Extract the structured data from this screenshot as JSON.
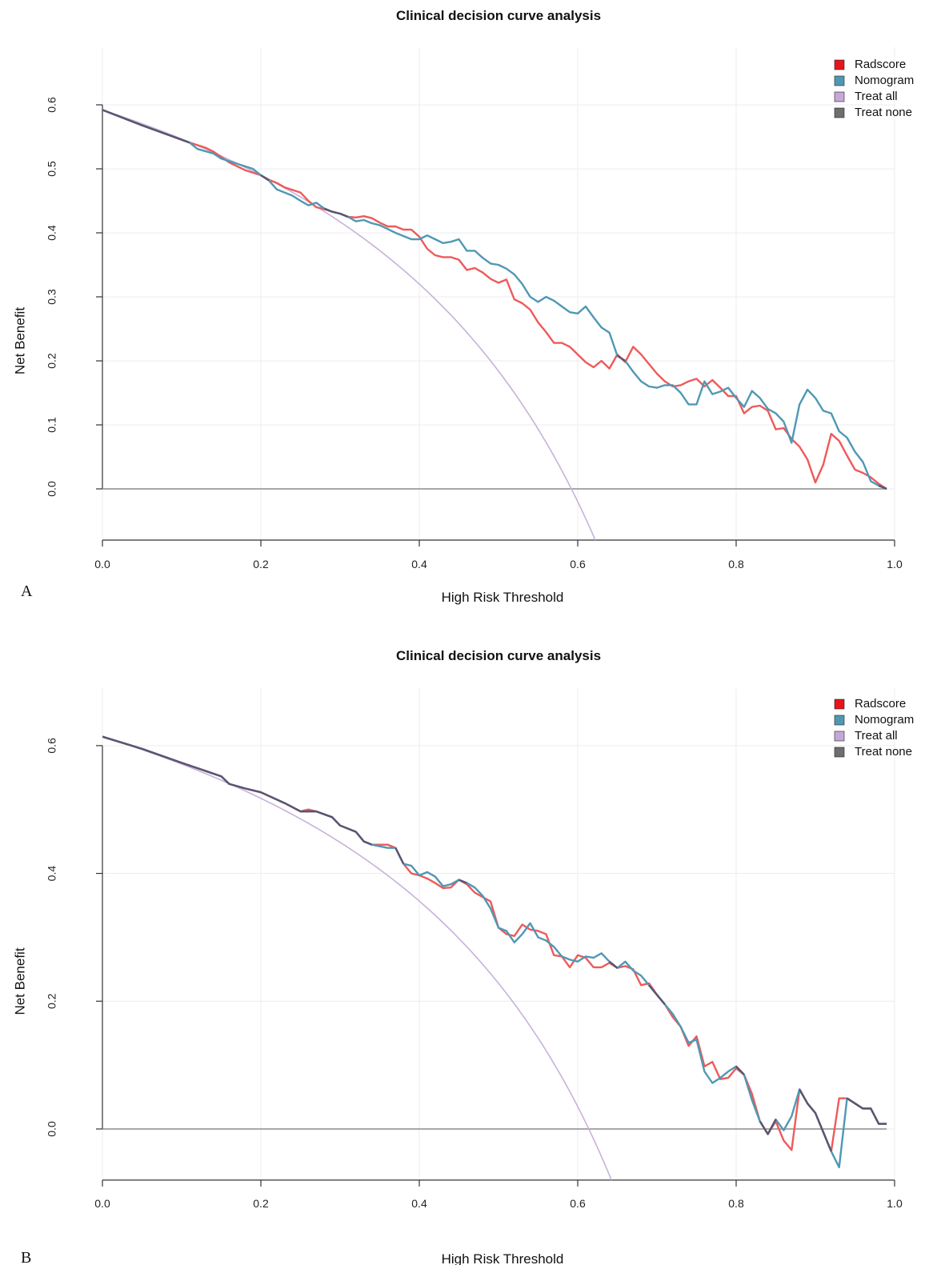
{
  "chart_data": [
    {
      "type": "line",
      "panel_label": "A",
      "title": "Clinical decision curve analysis",
      "xlabel": "High Risk Threshold",
      "ylabel": "Net Benefit",
      "xlim": [
        0,
        1
      ],
      "ylim": [
        -0.08,
        0.69
      ],
      "xticks": [
        "0.0",
        "0.2",
        "0.4",
        "0.6",
        "0.8",
        "1.0"
      ],
      "yticks": [
        "0.0",
        "0.1",
        "0.2",
        "0.3",
        "0.4",
        "0.5",
        "0.6"
      ],
      "grid": true,
      "legend_position": "top-right",
      "series": [
        {
          "name": "Radscore",
          "color": "#ee5a5a",
          "swatch": "#e8141b",
          "x": [
            0.0,
            0.05,
            0.11,
            0.13,
            0.14,
            0.16,
            0.18,
            0.2,
            0.21,
            0.22,
            0.23,
            0.25,
            0.26,
            0.27,
            0.28,
            0.29,
            0.3,
            0.31,
            0.32,
            0.33,
            0.34,
            0.35,
            0.36,
            0.37,
            0.38,
            0.39,
            0.4,
            0.41,
            0.42,
            0.43,
            0.44,
            0.45,
            0.46,
            0.47,
            0.48,
            0.49,
            0.5,
            0.51,
            0.52,
            0.53,
            0.54,
            0.55,
            0.56,
            0.57,
            0.58,
            0.59,
            0.6,
            0.61,
            0.62,
            0.63,
            0.64,
            0.65,
            0.66,
            0.67,
            0.68,
            0.69,
            0.7,
            0.71,
            0.72,
            0.73,
            0.74,
            0.75,
            0.76,
            0.77,
            0.78,
            0.79,
            0.8,
            0.81,
            0.82,
            0.83,
            0.84,
            0.85,
            0.86,
            0.87,
            0.88,
            0.89,
            0.9,
            0.91,
            0.92,
            0.93,
            0.94,
            0.95,
            0.96,
            0.97,
            0.98,
            0.99
          ],
          "y": [
            0.592,
            0.568,
            0.541,
            0.533,
            0.527,
            0.51,
            0.498,
            0.49,
            0.483,
            0.478,
            0.471,
            0.463,
            0.45,
            0.44,
            0.437,
            0.433,
            0.43,
            0.425,
            0.424,
            0.426,
            0.423,
            0.416,
            0.41,
            0.41,
            0.405,
            0.405,
            0.394,
            0.375,
            0.365,
            0.362,
            0.362,
            0.358,
            0.342,
            0.345,
            0.338,
            0.328,
            0.322,
            0.327,
            0.296,
            0.29,
            0.28,
            0.26,
            0.245,
            0.228,
            0.228,
            0.222,
            0.21,
            0.198,
            0.19,
            0.2,
            0.188,
            0.21,
            0.198,
            0.222,
            0.21,
            0.195,
            0.18,
            0.168,
            0.16,
            0.162,
            0.168,
            0.172,
            0.16,
            0.17,
            0.158,
            0.145,
            0.145,
            0.118,
            0.128,
            0.13,
            0.122,
            0.093,
            0.095,
            0.078,
            0.066,
            0.046,
            0.01,
            0.038,
            0.086,
            0.075,
            0.052,
            0.03,
            0.025,
            0.018,
            0.008,
            0.0
          ]
        },
        {
          "name": "Nomogram",
          "color": "#4f98b4",
          "swatch": "#4f98b4",
          "x": [
            0.0,
            0.05,
            0.11,
            0.12,
            0.14,
            0.15,
            0.17,
            0.19,
            0.2,
            0.21,
            0.22,
            0.24,
            0.25,
            0.26,
            0.27,
            0.28,
            0.29,
            0.3,
            0.31,
            0.32,
            0.33,
            0.34,
            0.35,
            0.36,
            0.37,
            0.38,
            0.39,
            0.4,
            0.41,
            0.42,
            0.43,
            0.44,
            0.45,
            0.46,
            0.47,
            0.48,
            0.49,
            0.5,
            0.51,
            0.52,
            0.53,
            0.54,
            0.55,
            0.56,
            0.57,
            0.58,
            0.59,
            0.6,
            0.61,
            0.62,
            0.63,
            0.64,
            0.65,
            0.66,
            0.67,
            0.68,
            0.69,
            0.7,
            0.71,
            0.72,
            0.73,
            0.74,
            0.75,
            0.76,
            0.77,
            0.78,
            0.79,
            0.8,
            0.81,
            0.82,
            0.83,
            0.84,
            0.85,
            0.86,
            0.87,
            0.88,
            0.89,
            0.9,
            0.91,
            0.92,
            0.93,
            0.94,
            0.95,
            0.96,
            0.97,
            0.98,
            0.99
          ],
          "y": [
            0.592,
            0.568,
            0.541,
            0.531,
            0.524,
            0.516,
            0.508,
            0.5,
            0.49,
            0.482,
            0.468,
            0.458,
            0.45,
            0.443,
            0.447,
            0.438,
            0.433,
            0.43,
            0.425,
            0.418,
            0.42,
            0.415,
            0.412,
            0.406,
            0.4,
            0.395,
            0.39,
            0.39,
            0.396,
            0.39,
            0.384,
            0.386,
            0.39,
            0.372,
            0.372,
            0.361,
            0.352,
            0.35,
            0.344,
            0.335,
            0.32,
            0.3,
            0.292,
            0.3,
            0.294,
            0.285,
            0.276,
            0.274,
            0.285,
            0.268,
            0.252,
            0.244,
            0.208,
            0.2,
            0.183,
            0.168,
            0.16,
            0.158,
            0.162,
            0.162,
            0.15,
            0.132,
            0.132,
            0.168,
            0.148,
            0.152,
            0.158,
            0.142,
            0.128,
            0.153,
            0.142,
            0.125,
            0.118,
            0.105,
            0.072,
            0.132,
            0.155,
            0.142,
            0.122,
            0.118,
            0.09,
            0.08,
            0.058,
            0.042,
            0.012,
            0.005,
            0.0
          ]
        },
        {
          "name": "Treat all",
          "color": "#c8b2d8",
          "swatch": "#c5a8d8",
          "curve": "treat_all",
          "prevalence": 0.592,
          "x_end": 0.625
        },
        {
          "name": "Treat none",
          "color": "#8c8c8c",
          "swatch": "#6e6e6e",
          "x": [
            0,
            0.99
          ],
          "y": [
            0,
            0
          ]
        }
      ]
    },
    {
      "type": "line",
      "panel_label": "B",
      "title": "Clinical decision curve analysis",
      "xlabel": "High Risk Threshold",
      "ylabel": "Net Benefit",
      "xlim": [
        0,
        1
      ],
      "ylim": [
        -0.08,
        0.69
      ],
      "xticks": [
        "0.0",
        "0.2",
        "0.4",
        "0.6",
        "0.8",
        "1.0"
      ],
      "yticks": [
        "0.0",
        "0.2",
        "0.4",
        "0.6"
      ],
      "grid": true,
      "legend_position": "top-right",
      "series": [
        {
          "name": "Radscore",
          "color": "#ee5a5a",
          "swatch": "#e8141b",
          "x": [
            0.0,
            0.05,
            0.1,
            0.15,
            0.16,
            0.18,
            0.2,
            0.23,
            0.25,
            0.26,
            0.27,
            0.29,
            0.3,
            0.32,
            0.33,
            0.34,
            0.36,
            0.37,
            0.38,
            0.39,
            0.4,
            0.41,
            0.42,
            0.43,
            0.44,
            0.45,
            0.46,
            0.47,
            0.48,
            0.49,
            0.5,
            0.51,
            0.52,
            0.53,
            0.54,
            0.55,
            0.56,
            0.57,
            0.58,
            0.59,
            0.6,
            0.61,
            0.62,
            0.63,
            0.64,
            0.65,
            0.66,
            0.67,
            0.68,
            0.69,
            0.7,
            0.71,
            0.72,
            0.73,
            0.74,
            0.75,
            0.76,
            0.77,
            0.78,
            0.79,
            0.8,
            0.81,
            0.82,
            0.83,
            0.84,
            0.85,
            0.86,
            0.87,
            0.88,
            0.89,
            0.9,
            0.91,
            0.92,
            0.93,
            0.94,
            0.95,
            0.96,
            0.97,
            0.98,
            0.99
          ],
          "y": [
            0.614,
            0.595,
            0.573,
            0.552,
            0.54,
            0.533,
            0.527,
            0.51,
            0.497,
            0.5,
            0.497,
            0.488,
            0.475,
            0.465,
            0.45,
            0.445,
            0.445,
            0.44,
            0.415,
            0.4,
            0.397,
            0.392,
            0.385,
            0.377,
            0.378,
            0.39,
            0.383,
            0.37,
            0.363,
            0.356,
            0.315,
            0.305,
            0.302,
            0.32,
            0.312,
            0.31,
            0.305,
            0.272,
            0.27,
            0.253,
            0.272,
            0.268,
            0.253,
            0.253,
            0.26,
            0.252,
            0.255,
            0.25,
            0.225,
            0.228,
            0.21,
            0.195,
            0.175,
            0.16,
            0.13,
            0.145,
            0.098,
            0.105,
            0.078,
            0.08,
            0.095,
            0.085,
            0.055,
            0.012,
            -0.008,
            0.012,
            -0.018,
            -0.033,
            0.062,
            0.04,
            0.025,
            -0.005,
            -0.035,
            0.048,
            0.048,
            0.04,
            0.032,
            0.032,
            0.008,
            0.008
          ]
        },
        {
          "name": "Nomogram",
          "color": "#4f98b4",
          "swatch": "#4f98b4",
          "x": [
            0.0,
            0.05,
            0.1,
            0.15,
            0.16,
            0.18,
            0.2,
            0.23,
            0.25,
            0.27,
            0.29,
            0.3,
            0.32,
            0.33,
            0.34,
            0.36,
            0.37,
            0.38,
            0.39,
            0.4,
            0.41,
            0.42,
            0.43,
            0.44,
            0.45,
            0.46,
            0.47,
            0.48,
            0.49,
            0.5,
            0.51,
            0.52,
            0.53,
            0.54,
            0.55,
            0.56,
            0.57,
            0.58,
            0.59,
            0.6,
            0.61,
            0.62,
            0.63,
            0.64,
            0.65,
            0.66,
            0.67,
            0.68,
            0.69,
            0.7,
            0.71,
            0.72,
            0.73,
            0.74,
            0.75,
            0.76,
            0.77,
            0.78,
            0.79,
            0.8,
            0.81,
            0.82,
            0.83,
            0.84,
            0.85,
            0.86,
            0.87,
            0.88,
            0.89,
            0.9,
            0.91,
            0.92,
            0.93,
            0.94,
            0.95,
            0.96,
            0.97,
            0.98,
            0.99
          ],
          "y": [
            0.614,
            0.595,
            0.573,
            0.552,
            0.54,
            0.533,
            0.527,
            0.51,
            0.497,
            0.497,
            0.488,
            0.475,
            0.465,
            0.45,
            0.445,
            0.44,
            0.44,
            0.415,
            0.412,
            0.397,
            0.402,
            0.395,
            0.38,
            0.383,
            0.39,
            0.385,
            0.378,
            0.365,
            0.345,
            0.315,
            0.31,
            0.292,
            0.305,
            0.322,
            0.3,
            0.295,
            0.285,
            0.27,
            0.265,
            0.262,
            0.27,
            0.268,
            0.275,
            0.262,
            0.252,
            0.262,
            0.248,
            0.24,
            0.225,
            0.21,
            0.195,
            0.18,
            0.16,
            0.135,
            0.14,
            0.09,
            0.072,
            0.08,
            0.09,
            0.098,
            0.085,
            0.045,
            0.012,
            -0.008,
            0.015,
            -0.002,
            0.02,
            0.062,
            0.04,
            0.025,
            -0.005,
            -0.035,
            -0.06,
            0.048,
            0.04,
            0.032,
            0.032,
            0.008,
            0.008
          ]
        },
        {
          "name": "Treat all",
          "color": "#c8b2d8",
          "swatch": "#c5a8d8",
          "curve": "treat_all",
          "prevalence": 0.614,
          "x_end": 0.645
        },
        {
          "name": "Treat none",
          "color": "#8c8c8c",
          "swatch": "#6e6e6e",
          "x": [
            0,
            0.99
          ],
          "y": [
            0,
            0
          ]
        }
      ]
    }
  ]
}
